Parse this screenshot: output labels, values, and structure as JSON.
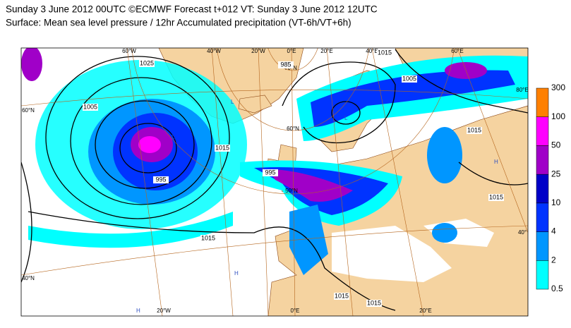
{
  "title": {
    "line1": "Sunday 3 June 2012 00UTC ©ECMWF Forecast t+012 VT: Sunday 3 June 2012 12UTC",
    "line2": "Surface: Mean sea level pressure / 12hr Accumulated precipitation (VT-6h/VT+6h)"
  },
  "map": {
    "graticule_labels": [
      "60°W",
      "40°W",
      "20°W",
      "0°E",
      "20°E",
      "40°E",
      "60°E",
      "80°E",
      "60°N",
      "40°N",
      "20°W",
      "0°E",
      "20°E",
      "70°N",
      "60°N",
      "50°N",
      "40°"
    ],
    "isobar_labels": [
      "1025",
      "1005",
      "995",
      "1015",
      "1015",
      "995",
      "1005",
      "1015",
      "1015",
      "1015",
      "1015",
      "1015",
      "985"
    ],
    "pressure_centers": [
      "L",
      "L",
      "H",
      "H",
      "L",
      "H"
    ]
  },
  "colorbar": {
    "levels": [
      0.5,
      2,
      4,
      10,
      25,
      50,
      100,
      300
    ],
    "colors": [
      "#00ffff",
      "#0096ff",
      "#0033ff",
      "#0000c8",
      "#a000c8",
      "#ff00ff",
      "#ff8000",
      "#ff0000"
    ]
  }
}
